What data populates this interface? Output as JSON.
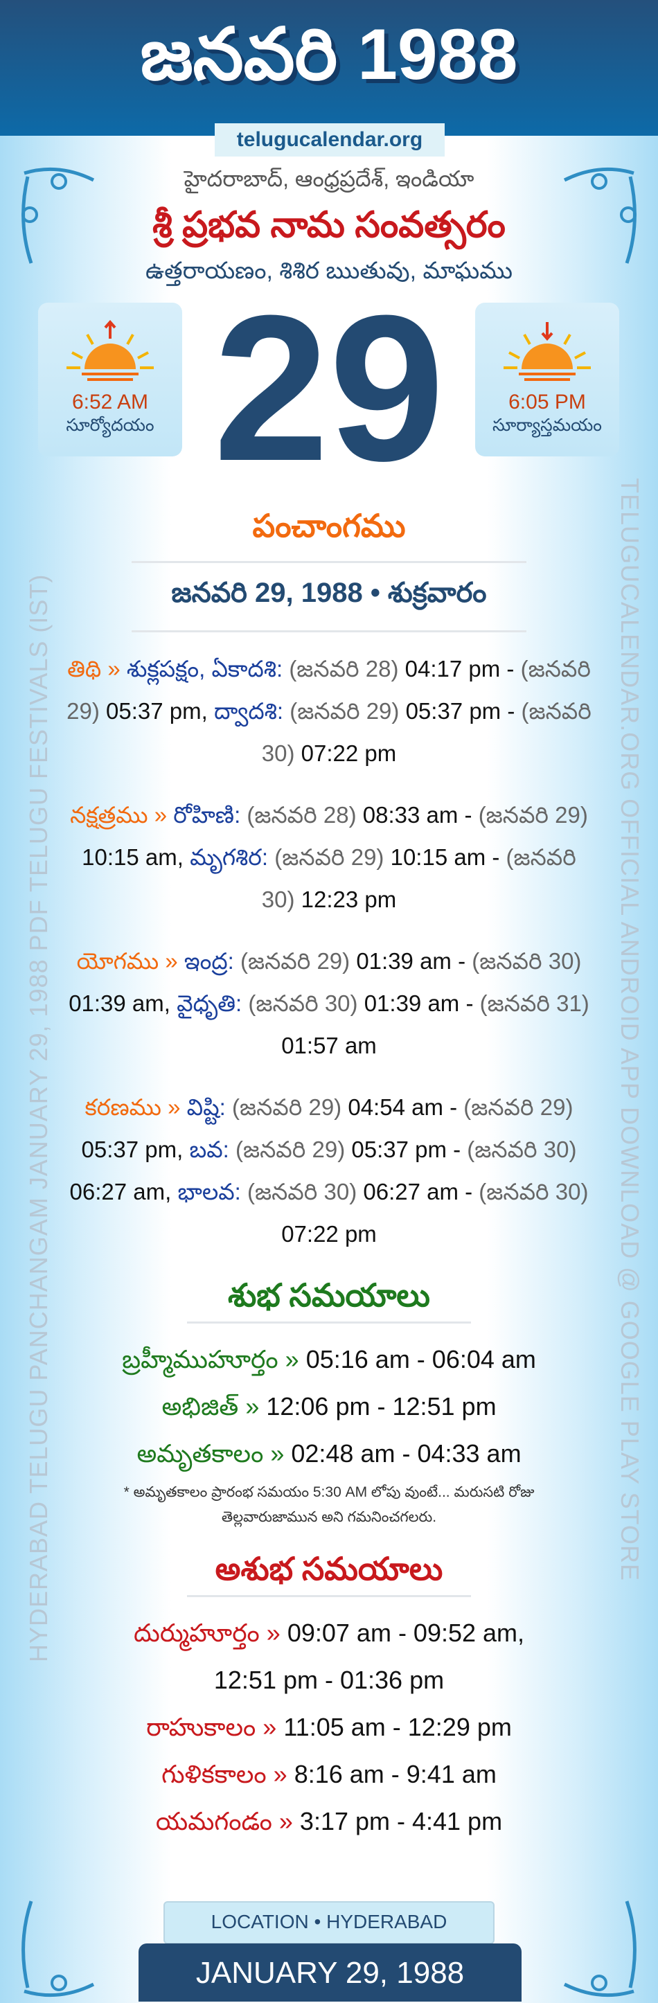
{
  "header": {
    "title": "జనవరి 1988",
    "site": "telugucalendar.org"
  },
  "location": "హైదరాబాద్, ఆంధ్రప్రదేశ్, ఇండియా",
  "samvatsaram": "శ్రీ ప్రభవ నామ సంవత్సరం",
  "ayanam": "ఉత్తరాయణం, శిశిర ఋతువు, మాఘము",
  "day": "29",
  "sunrise": {
    "time": "6:52 AM",
    "label": "సూర్యోదయం",
    "icon": "sunrise-icon"
  },
  "sunset": {
    "time": "6:05 PM",
    "label": "సూర్యాస్తమయం",
    "icon": "sunset-icon"
  },
  "panchangam": {
    "title": "పంచాంగము",
    "date": "జనవరి 29, 1988 • శుక్రవారం",
    "blocks": [
      {
        "key": "తిథి »",
        "parts": [
          [
            "v",
            "శుక్లపక్షం, ఏకాదశి:"
          ],
          [
            "g",
            "(జనవరి 28)"
          ],
          [
            "t",
            "04:17 pm -"
          ],
          [
            "g",
            "(జనవరి 29)"
          ],
          [
            "t",
            "05:37 pm,"
          ],
          [
            "v",
            "ద్వాదశి:"
          ],
          [
            "g",
            "(జనవరి 29)"
          ],
          [
            "t",
            "05:37 pm -"
          ],
          [
            "g",
            "(జనవరి 30)"
          ],
          [
            "t",
            "07:22 pm"
          ]
        ]
      },
      {
        "key": "నక్షత్రము »",
        "parts": [
          [
            "v",
            "రోహిణి:"
          ],
          [
            "g",
            "(జనవరి 28)"
          ],
          [
            "t",
            "08:33 am -"
          ],
          [
            "g",
            "(జనవరి 29)"
          ],
          [
            "t",
            "10:15 am,"
          ],
          [
            "v",
            "మృగశిర:"
          ],
          [
            "g",
            "(జనవరి 29)"
          ],
          [
            "t",
            "10:15 am -"
          ],
          [
            "g",
            "(జనవరి 30)"
          ],
          [
            "t",
            "12:23 pm"
          ]
        ]
      },
      {
        "key": "యోగము »",
        "parts": [
          [
            "v",
            "ఇంద్ర:"
          ],
          [
            "g",
            "(జనవరి 29)"
          ],
          [
            "t",
            "01:39 am -"
          ],
          [
            "g",
            "(జనవరి 30)"
          ],
          [
            "t",
            "01:39 am,"
          ],
          [
            "v",
            "వైధృతి:"
          ],
          [
            "g",
            "(జనవరి 30)"
          ],
          [
            "t",
            "01:39 am -"
          ],
          [
            "g",
            "(జనవరి 31)"
          ],
          [
            "t",
            "01:57 am"
          ]
        ]
      },
      {
        "key": "కరణము »",
        "parts": [
          [
            "v",
            "విష్టి:"
          ],
          [
            "g",
            "(జనవరి 29)"
          ],
          [
            "t",
            "04:54 am -"
          ],
          [
            "g",
            "(జనవరి 29)"
          ],
          [
            "t",
            "05:37 pm,"
          ],
          [
            "v",
            "బవ:"
          ],
          [
            "g",
            "(జనవరి 29)"
          ],
          [
            "t",
            "05:37 pm -"
          ],
          [
            "g",
            "(జనవరి 30)"
          ],
          [
            "t",
            "06:27 am,"
          ],
          [
            "v",
            "భాలవ:"
          ],
          [
            "g",
            "(జనవరి 30)"
          ],
          [
            "t",
            "06:27 am -"
          ],
          [
            "g",
            "(జనవరి 30)"
          ],
          [
            "t",
            "07:22 pm"
          ]
        ]
      }
    ]
  },
  "shubha": {
    "title": "శుభ సమయాలు",
    "items": [
      {
        "name": "బ్రహ్మీముహూర్తం »",
        "time": "05:16 am - 06:04 am"
      },
      {
        "name": "అభిజిత్ »",
        "time": "12:06 pm - 12:51 pm"
      },
      {
        "name": "అమృతకాలం »",
        "time": "02:48 am - 04:33 am"
      }
    ],
    "note": "* అమృతకాలం ప్రారంభ సమయం 5:30 AM లోపు వుంటే... మరుసటి రోజు తెల్లవారుజామున అని గమనించగలరు."
  },
  "ashubha": {
    "title": "అశుభ సమయాలు",
    "items": [
      {
        "name": "దుర్ముహూర్తం »",
        "time": "09:07 am - 09:52 am,",
        "time2": "12:51 pm - 01:36 pm"
      },
      {
        "name": "రాహుకాలం »",
        "time": "11:05 am - 12:29 pm"
      },
      {
        "name": "గుళికకాలం »",
        "time": "8:16 am - 9:41 am"
      },
      {
        "name": "యమగండం »",
        "time": "3:17 pm - 4:41 pm"
      }
    ]
  },
  "side_left": "HYDERABAD TELUGU PANCHANGAM JANUARY 29, 1988 PDF TELUGU FESTIVALS (IST)",
  "side_right": "TELUGUCALENDAR.ORG OFFICIAL ANDROID APP DOWNLOAD @ GOOGLE PLAY STORE",
  "watermark": "telugucalendar.org",
  "footer": {
    "location": "LOCATION • HYDERABAD",
    "date": "JANUARY 29, 1988"
  },
  "colors": {
    "header": "#24507c",
    "accent_orange": "#f26a0f",
    "value_blue": "#1a3f9c",
    "red": "#c8191d",
    "green": "#1e7a1e",
    "navy": "#234a72"
  }
}
